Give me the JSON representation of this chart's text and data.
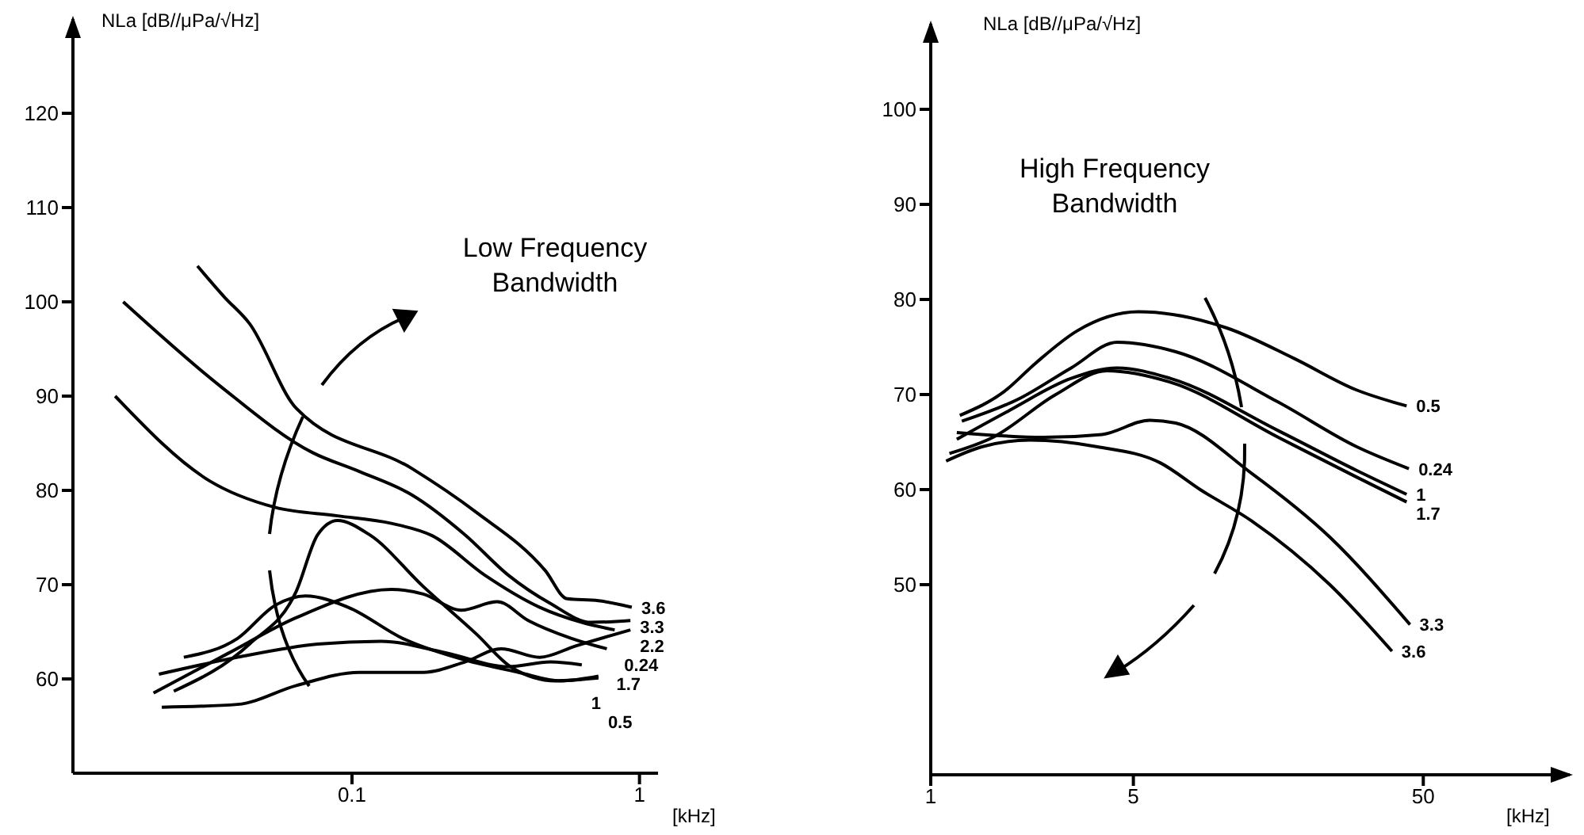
{
  "chart_data": [
    {
      "type": "line",
      "xlabel": "[kHz]",
      "ylabel": "NLa [dB//μPa/√Hz]",
      "annotations": [
        "Low Frequency Bandwidth"
      ],
      "log": "x",
      "marker": "none",
      "line_style": "solid",
      "xlim": [
        0.0107,
        1.16
      ],
      "xticks": [
        0.1,
        1
      ],
      "ylim": [
        50,
        130
      ],
      "yticks": [
        60,
        70,
        80,
        90,
        100,
        110,
        120
      ],
      "series": [
        {
          "name": "3.6",
          "color": "#000000",
          "x": [
            0.029,
            0.036,
            0.044,
            0.064,
            0.162,
            0.27,
            0.47,
            0.56,
            0.72,
            0.94
          ],
          "values": [
            103.8,
            100.5,
            97.7,
            88.7,
            82.3,
            77.7,
            71.5,
            68.5,
            68.3,
            67.6
          ]
        },
        {
          "name": "3.3",
          "color": "#000000",
          "x": [
            0.016,
            0.035,
            0.073,
            0.106,
            0.162,
            0.247,
            0.35,
            0.49,
            0.68,
            0.93
          ],
          "values": [
            100,
            91,
            84,
            82,
            79.5,
            75.3,
            71,
            68,
            66,
            66.2
          ]
        },
        {
          "name": "2.2",
          "color": "#000000",
          "x": [
            0.0218,
            0.04,
            0.064,
            0.106,
            0.177,
            0.247,
            0.33,
            0.45,
            0.6,
            0.93
          ],
          "values": [
            57,
            57.3,
            59.3,
            60.7,
            60.7,
            61.8,
            63.2,
            62.3,
            63.5,
            65.2
          ]
        },
        {
          "name": "0.24",
          "color": "#000000",
          "x": [
            0.015,
            0.032,
            0.054,
            0.089,
            0.137,
            0.19,
            0.29,
            0.45,
            0.63,
            0.82
          ],
          "values": [
            90,
            81,
            78.2,
            77.3,
            76.5,
            75.2,
            71,
            67.6,
            66,
            65.2
          ]
        },
        {
          "name": "1",
          "color": "#000000",
          "x": [
            0.0213,
            0.04,
            0.076,
            0.126,
            0.21,
            0.35,
            0.49,
            0.63
          ],
          "values": [
            60.5,
            62.3,
            63.7,
            64,
            62.8,
            61.3,
            61.8,
            61.5
          ]
        },
        {
          "name": "1.7",
          "color": "#000000",
          "x": [
            0.0204,
            0.037,
            0.064,
            0.137,
            0.177,
            0.24,
            0.32,
            0.41,
            0.58,
            0.77
          ],
          "values": [
            58.5,
            62.7,
            66.5,
            69.5,
            69,
            67.3,
            68.2,
            66.2,
            64.3,
            63.2
          ]
        },
        {
          "name": "0.5",
          "color": "#000000",
          "x": [
            0.026,
            0.04,
            0.054,
            0.069,
            0.097,
            0.15,
            0.247,
            0.38,
            0.53,
            0.72
          ],
          "values": [
            62.3,
            64.3,
            67.8,
            68.8,
            67.6,
            64.3,
            62,
            60.7,
            59.8,
            60.3
          ]
        },
        {
          "color": "#000000",
          "x": [
            0.024,
            0.044,
            0.064,
            0.076,
            0.089,
            0.115,
            0.177,
            0.27,
            0.36,
            0.51,
            0.72
          ],
          "values": [
            58.7,
            63.7,
            69.3,
            75.3,
            76.8,
            75.3,
            69.8,
            64.8,
            61.2,
            59.8,
            60.1
          ]
        }
      ]
    },
    {
      "type": "line",
      "xlabel": "[kHz]",
      "ylabel": "NLa [dB//μPa/√Hz]",
      "annotations": [
        "High Frequency Bandwidth"
      ],
      "log": "x",
      "marker": "none",
      "line_style": "solid",
      "xlim": [
        1,
        160
      ],
      "xticks": [
        1,
        5,
        50
      ],
      "ylim": [
        30,
        109
      ],
      "yticks": [
        50,
        60,
        70,
        80,
        90,
        100
      ],
      "series": [
        {
          "name": "0.5",
          "color": "#000000",
          "x": [
            1.26,
            1.79,
            2.3,
            3.2,
            5.2,
            10.5,
            17.9,
            29.3,
            43.8
          ],
          "values": [
            67.8,
            70.3,
            73.3,
            76.7,
            78.7,
            77,
            73.8,
            70.5,
            68.8
          ]
        },
        {
          "name": "0.24",
          "color": "#000000",
          "x": [
            1.28,
            2.0,
            3.05,
            4.4,
            7.0,
            15.8,
            29.5,
            44.6
          ],
          "values": [
            67.2,
            69.5,
            72.8,
            75.5,
            74.5,
            69.2,
            64.5,
            62.2
          ]
        },
        {
          "name": "1",
          "color": "#000000",
          "x": [
            1.23,
            1.86,
            3.05,
            4.4,
            6.7,
            15.8,
            29.5,
            43.8
          ],
          "values": [
            65.3,
            68.3,
            71.7,
            72.8,
            71.7,
            66.2,
            62,
            59.5
          ]
        },
        {
          "name": "1.7",
          "color": "#000000",
          "x": [
            1.16,
            1.64,
            2.7,
            4.05,
            6.7,
            15.8,
            29.5,
            43.8
          ],
          "values": [
            63.8,
            65.5,
            70,
            72.5,
            71.3,
            65.5,
            61.3,
            58.7
          ]
        },
        {
          "name": "3.3",
          "color": "#000000",
          "x": [
            1.23,
            2.45,
            3.9,
            5.7,
            7.0,
            12.8,
            23.8,
            45
          ],
          "values": [
            66,
            65.5,
            65.8,
            67.3,
            67,
            61.7,
            55,
            45.8
          ]
        },
        {
          "name": "3.6",
          "color": "#000000",
          "x": [
            1.13,
            1.5,
            2.2,
            3.76,
            6.2,
            8.5,
            12.8,
            23.8,
            39
          ],
          "values": [
            63,
            64.5,
            65.2,
            64.5,
            62.8,
            60,
            56.7,
            50,
            43
          ]
        }
      ]
    }
  ]
}
